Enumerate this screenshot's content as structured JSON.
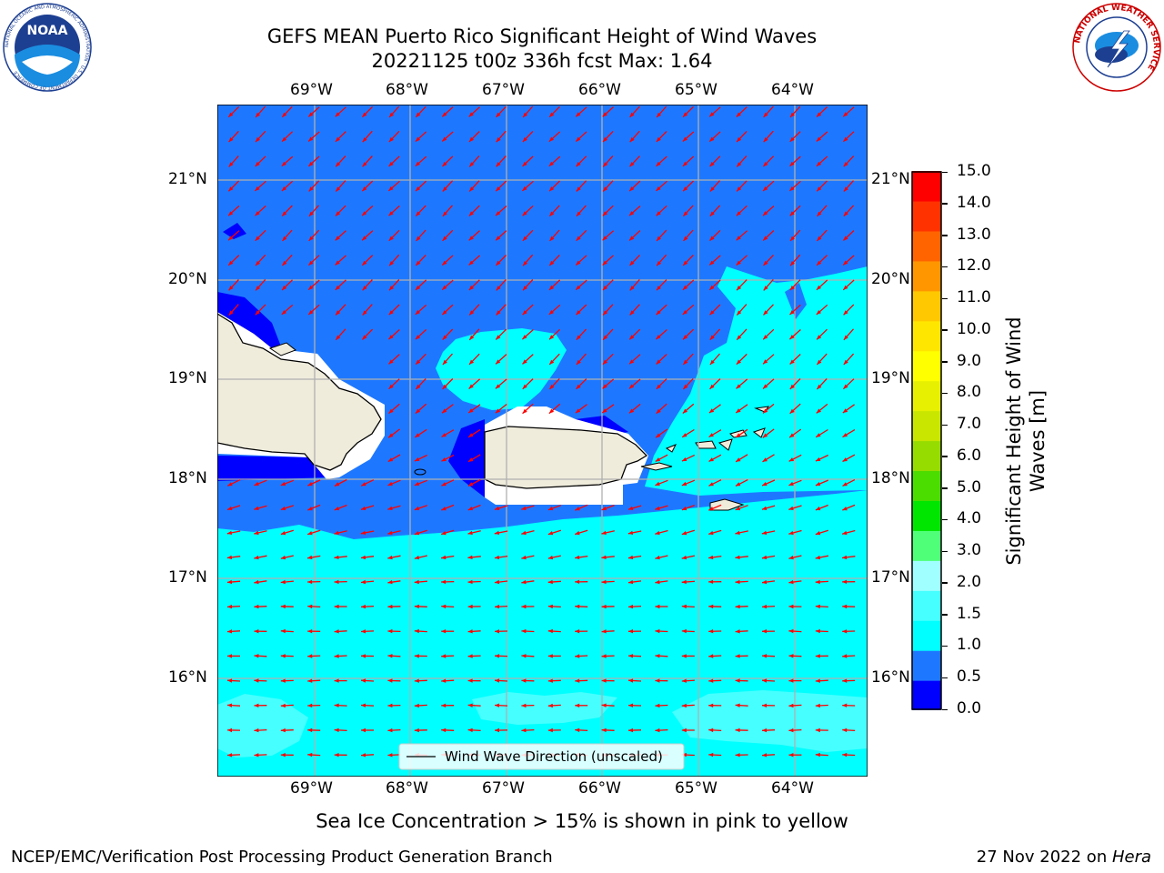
{
  "title": {
    "line1": "GEFS MEAN Puerto Rico Significant Height of Wind Waves",
    "line2": "20221125 t00z 336h fcst   Max: 1.64"
  },
  "logos": {
    "noaa_text": "NOAA",
    "noaa_ring": "NATIONAL OCEANIC AND ATMOSPHERIC ADMINISTRATION · U.S. DEPARTMENT OF COMMERCE",
    "nws_ring": "NATIONAL WEATHER SERVICE"
  },
  "map": {
    "lon_labels": [
      "69°W",
      "68°W",
      "67°W",
      "66°W",
      "65°W",
      "64°W"
    ],
    "lat_labels": [
      "21°N",
      "20°N",
      "19°N",
      "18°N",
      "17°N",
      "16°N"
    ],
    "legend_label": "Wind Wave Direction (unscaled)",
    "arrow_color": "#ff0000",
    "land_color": "#efecdc"
  },
  "colorbar": {
    "label_line1": "Significant Height of Wind",
    "label_line2": "Waves [m]",
    "ticks": [
      "15.0",
      "14.0",
      "13.0",
      "12.0",
      "11.0",
      "10.0",
      "9.0",
      "8.0",
      "7.0",
      "6.0",
      "5.0",
      "4.0",
      "3.0",
      "2.0",
      "1.5",
      "1.0",
      "0.5",
      "0.0"
    ],
    "levels": [
      0.0,
      0.5,
      1.0,
      1.5,
      2.0,
      3.0,
      4.0,
      5.0,
      6.0,
      7.0,
      8.0,
      9.0,
      10.0,
      11.0,
      12.0,
      13.0,
      14.0,
      15.0
    ],
    "colors": [
      "#0000ff",
      "#1e78ff",
      "#00ffff",
      "#46ffff",
      "#a0ffff",
      "#50ff78",
      "#00e600",
      "#4bdc00",
      "#96dc00",
      "#c8e600",
      "#e6f000",
      "#ffff00",
      "#ffe600",
      "#ffc800",
      "#ff9600",
      "#ff6400",
      "#ff3200",
      "#ff0000"
    ]
  },
  "caption": "Sea Ice Concentration > 15% is shown in pink to yellow",
  "footer": {
    "left": "NCEP/EMC/Verification Post Processing Product Generation Branch",
    "right_prefix": "27 Nov 2022 on ",
    "right_host": "Hera"
  }
}
